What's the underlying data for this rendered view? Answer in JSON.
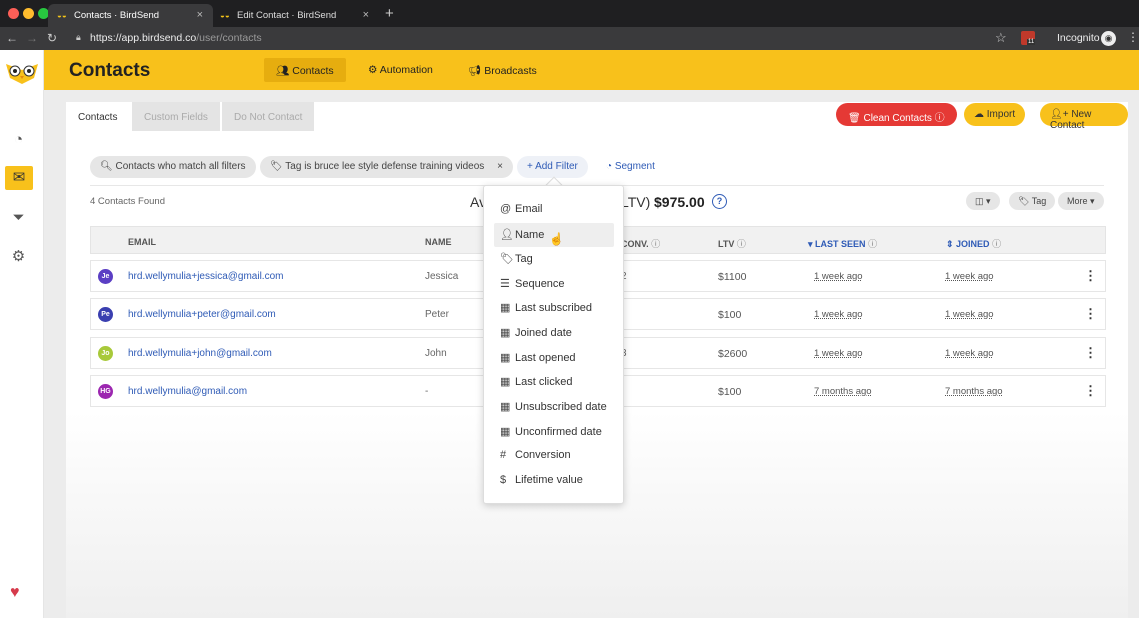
{
  "browser": {
    "tabs": [
      {
        "title": "Contacts · BirdSend"
      },
      {
        "title": "Edit Contact · BirdSend"
      }
    ],
    "url_host": "https://app.birdsend.co",
    "url_path": "/user/contacts",
    "profile_label": "Incognito",
    "extension_badge": "11"
  },
  "header": {
    "title": "Contacts",
    "nav": [
      {
        "label": "Contacts",
        "icon": "users-icon"
      },
      {
        "label": "Automation",
        "icon": "gears-icon"
      },
      {
        "label": "Broadcasts",
        "icon": "megaphone-icon"
      }
    ]
  },
  "subtabs": [
    "Contacts",
    "Custom Fields",
    "Do Not Contact"
  ],
  "actions": {
    "clean": "Clean Contacts",
    "import": "Import",
    "new_contact": "New Contact"
  },
  "filters": {
    "chips": [
      "Contacts who match all filters",
      "Tag is bruce lee style defense training videos"
    ],
    "add_filter": "Add Filter",
    "segment": "Segment"
  },
  "summary": {
    "found": "4 Contacts Found",
    "avg_label_left": "Av",
    "avg_label_right": "LTV)",
    "avg_value": "$975.00"
  },
  "toolbar": {
    "tag": "Tag",
    "more": "More"
  },
  "table": {
    "headers": {
      "email": "EMAIL",
      "name": "NAME",
      "conv": "CONV.",
      "ltv": "LTV",
      "last_seen": "LAST SEEN",
      "joined": "JOINED"
    },
    "rows": [
      {
        "initials": "Je",
        "avatar_color": "#5b3fc4",
        "email": "hrd.wellymulia+jessica@gmail.com",
        "name": "Jessica",
        "conv": "2",
        "ltv": "$1100",
        "last_seen": "1 week ago",
        "joined": "1 week ago"
      },
      {
        "initials": "Pe",
        "avatar_color": "#3a3fb0",
        "email": "hrd.wellymulia+peter@gmail.com",
        "name": "Peter",
        "conv": "",
        "ltv": "$100",
        "last_seen": "1 week ago",
        "joined": "1 week ago"
      },
      {
        "initials": "Jo",
        "avatar_color": "#a8c93a",
        "email": "hrd.wellymulia+john@gmail.com",
        "name": "John",
        "conv": "3",
        "ltv": "$2600",
        "last_seen": "1 week ago",
        "joined": "1 week ago"
      },
      {
        "initials": "HG",
        "avatar_color": "#9c27b0",
        "email": "hrd.wellymulia@gmail.com",
        "name": "-",
        "conv": "",
        "ltv": "$100",
        "last_seen": "7 months ago",
        "joined": "7 months ago"
      }
    ]
  },
  "dropdown": {
    "options": [
      {
        "label": "Email",
        "icon": "@"
      },
      {
        "label": "Name",
        "icon": "user"
      },
      {
        "label": "Tag",
        "icon": "tag"
      },
      {
        "label": "Sequence",
        "icon": "list"
      },
      {
        "label": "Last subscribed",
        "icon": "calendar"
      },
      {
        "label": "Joined date",
        "icon": "calendar"
      },
      {
        "label": "Last opened",
        "icon": "calendar"
      },
      {
        "label": "Last clicked",
        "icon": "calendar"
      },
      {
        "label": "Unsubscribed date",
        "icon": "calendar"
      },
      {
        "label": "Unconfirmed date",
        "icon": "calendar"
      },
      {
        "label": "Conversion",
        "icon": "#"
      },
      {
        "label": "Lifetime value",
        "icon": "$"
      }
    ],
    "hovered": "Name"
  },
  "colors": {
    "brand_yellow": "#f8c11b",
    "danger_red": "#e53935",
    "link_blue": "#2f5bb6"
  }
}
